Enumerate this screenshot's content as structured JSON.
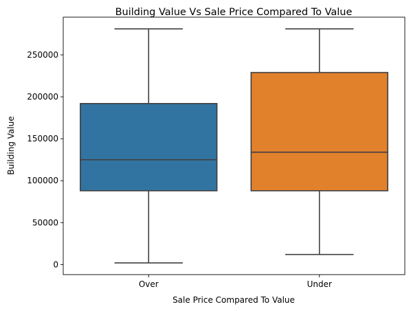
{
  "chart_data": {
    "type": "box",
    "title": "Building Value Vs Sale Price Compared To Value",
    "xlabel": "Sale Price Compared To Value",
    "ylabel": "Building Value",
    "categories": [
      "Over",
      "Under"
    ],
    "boxes": [
      {
        "name": "Over",
        "whisker_low": 2000,
        "q1": 88000,
        "median": 125000,
        "q3": 192000,
        "whisker_high": 281000,
        "color": "#3274a1"
      },
      {
        "name": "Under",
        "whisker_low": 12000,
        "q1": 88000,
        "median": 134000,
        "q3": 229000,
        "whisker_high": 281000,
        "color": "#e1812c"
      }
    ],
    "yticks": [
      0,
      50000,
      100000,
      150000,
      200000,
      250000
    ],
    "ytick_labels": [
      "0",
      "50000",
      "100000",
      "150000",
      "200000",
      "250000"
    ],
    "ylim": [
      -12000,
      295000
    ],
    "grid": false,
    "line_color": "#3f3f3f"
  }
}
